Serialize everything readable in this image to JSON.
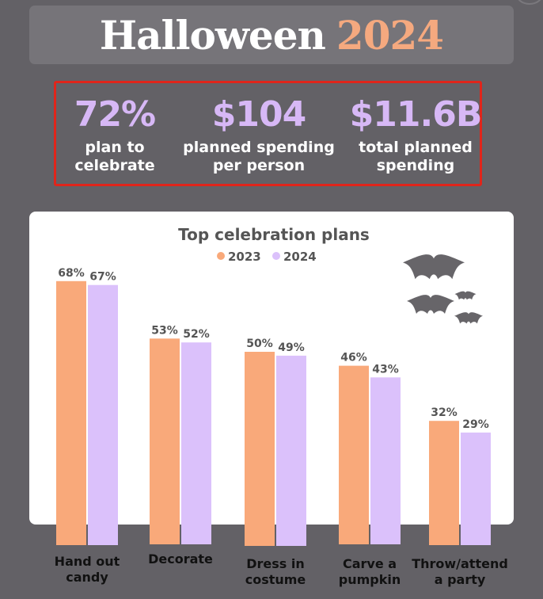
{
  "header": {
    "title_word": "Halloween",
    "title_year": "2024"
  },
  "stats": [
    {
      "value": "72%",
      "label": "plan to\ncelebrate"
    },
    {
      "value": "$104",
      "label": "planned spending\nper person"
    },
    {
      "value": "$11.6B",
      "label": "total planned\nspending"
    }
  ],
  "colors": {
    "series_2023": "#f9a97a",
    "series_2024": "#dbc1fb",
    "bats": "#676569"
  },
  "chart_data": {
    "type": "bar",
    "title": "Top celebration plans",
    "categories": [
      "Hand out\ncandy",
      "Decorate",
      "Dress in\ncostume",
      "Carve a\npumpkin",
      "Throw/attend\na party"
    ],
    "series": [
      {
        "name": "2023",
        "values": [
          68,
          53,
          50,
          46,
          32
        ],
        "labels": [
          "68%",
          "53%",
          "50%",
          "46%",
          "32%"
        ]
      },
      {
        "name": "2024",
        "values": [
          67,
          52,
          49,
          43,
          29
        ],
        "labels": [
          "67%",
          "52%",
          "49%",
          "43%",
          "29%"
        ]
      }
    ],
    "ylim": [
      0,
      100
    ],
    "grid": false,
    "legend": "top-center",
    "decoration": "bat-icons"
  }
}
